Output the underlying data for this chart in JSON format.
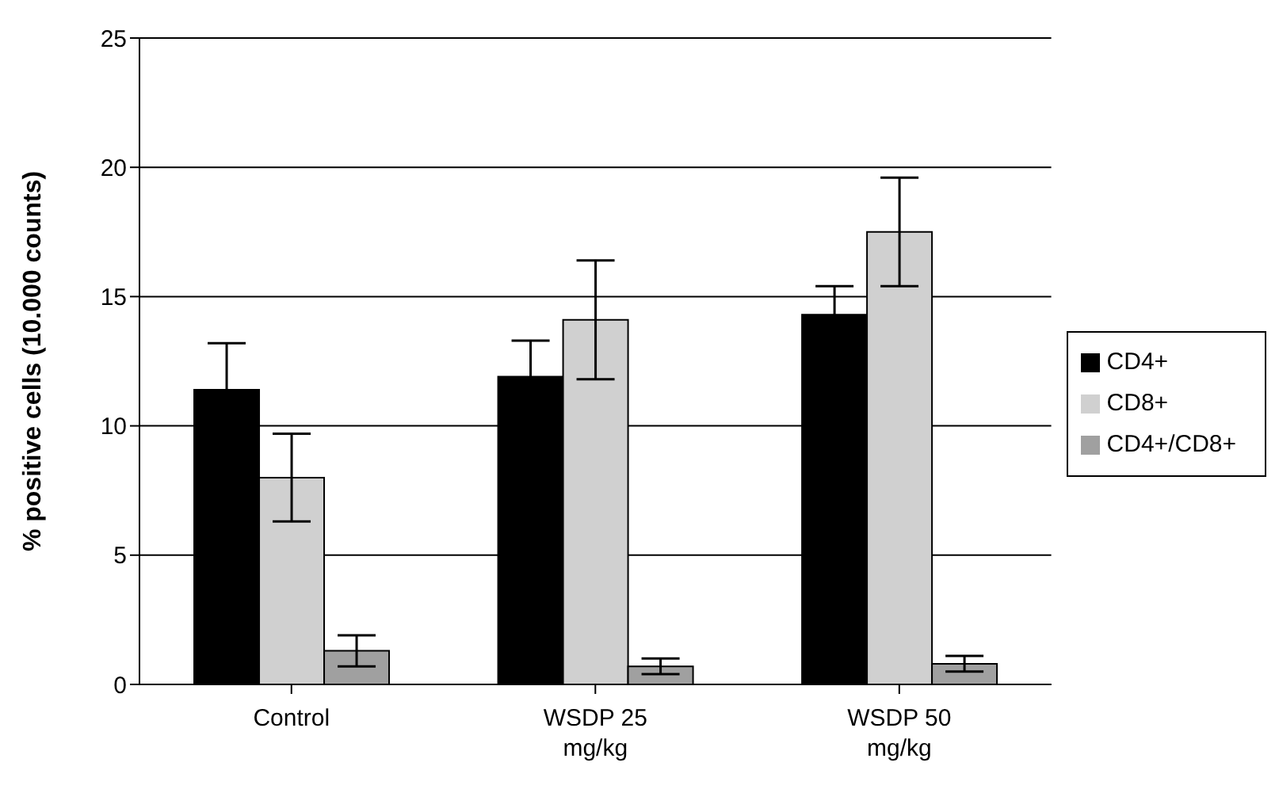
{
  "chart_data": {
    "type": "bar",
    "ylabel": "% positive cells (10.000 counts)",
    "categories": [
      "Control",
      "WSDP 25 mg/kg",
      "WSDP 50 mg/kg"
    ],
    "series": [
      {
        "name": "CD4+",
        "color": "#000000",
        "values": [
          11.4,
          11.9,
          14.3
        ],
        "errors": [
          1.8,
          1.4,
          1.1
        ]
      },
      {
        "name": "CD8+",
        "color": "#d0d0d0",
        "values": [
          8.0,
          14.1,
          17.5
        ],
        "errors": [
          1.7,
          2.3,
          2.1
        ]
      },
      {
        "name": "CD4+/CD8+",
        "color": "#a0a0a0",
        "values": [
          1.3,
          0.7,
          0.8
        ],
        "errors": [
          0.6,
          0.3,
          0.3
        ]
      }
    ],
    "ylim": [
      0,
      25
    ],
    "yticks": [
      0,
      5,
      10,
      15,
      20,
      25
    ],
    "grid": "y",
    "legend": "right"
  }
}
